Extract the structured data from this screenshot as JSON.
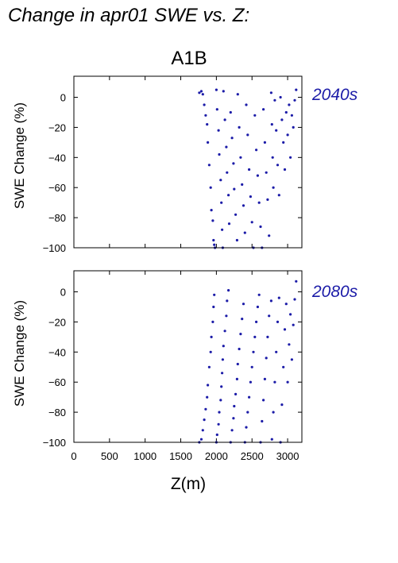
{
  "title": "Change in apr01 SWE vs. Z:",
  "scenario": "A1B",
  "colors": {
    "points": "#1c1ca8",
    "period_label": "#1c1ca8",
    "axes": "#000000"
  },
  "chart_data": [
    {
      "type": "scatter",
      "period_label": "2040s",
      "ylabel": "SWE Change (%)",
      "xlabel": "",
      "xlim": [
        0,
        3200
      ],
      "ylim": [
        -100,
        14
      ],
      "xticks": [
        0,
        500,
        1000,
        1500,
        2000,
        2500,
        3000
      ],
      "yticks": [
        0,
        -20,
        -40,
        -60,
        -80,
        -100
      ],
      "ytick_labels": [
        "0",
        "−20",
        "−40",
        "−60",
        "−80",
        "−100"
      ],
      "grid": false,
      "points": [
        [
          1760,
          3
        ],
        [
          1790,
          4
        ],
        [
          1810,
          2
        ],
        [
          1830,
          -5
        ],
        [
          1850,
          -12
        ],
        [
          1870,
          -18
        ],
        [
          1880,
          -30
        ],
        [
          1900,
          -45
        ],
        [
          1920,
          -60
        ],
        [
          1930,
          -75
        ],
        [
          1950,
          -82
        ],
        [
          1960,
          -95
        ],
        [
          1970,
          -98
        ],
        [
          1980,
          -100
        ],
        [
          2000,
          5
        ],
        [
          2010,
          -8
        ],
        [
          2030,
          -22
        ],
        [
          2040,
          -38
        ],
        [
          2060,
          -55
        ],
        [
          2070,
          -70
        ],
        [
          2080,
          -88
        ],
        [
          2090,
          -100
        ],
        [
          2100,
          4
        ],
        [
          2120,
          -15
        ],
        [
          2140,
          -33
        ],
        [
          2150,
          -50
        ],
        [
          2170,
          -65
        ],
        [
          2180,
          -84
        ],
        [
          2200,
          -10
        ],
        [
          2220,
          -27
        ],
        [
          2240,
          -44
        ],
        [
          2250,
          -61
        ],
        [
          2270,
          -78
        ],
        [
          2290,
          -95
        ],
        [
          2300,
          2
        ],
        [
          2320,
          -20
        ],
        [
          2340,
          -40
        ],
        [
          2360,
          -58
        ],
        [
          2380,
          -72
        ],
        [
          2400,
          -90
        ],
        [
          2420,
          -5
        ],
        [
          2440,
          -25
        ],
        [
          2460,
          -48
        ],
        [
          2480,
          -66
        ],
        [
          2500,
          -83
        ],
        [
          2520,
          -100
        ],
        [
          2540,
          -12
        ],
        [
          2560,
          -35
        ],
        [
          2580,
          -52
        ],
        [
          2600,
          -70
        ],
        [
          2620,
          -86
        ],
        [
          2640,
          -100
        ],
        [
          2660,
          -8
        ],
        [
          2680,
          -30
        ],
        [
          2700,
          -50
        ],
        [
          2720,
          -68
        ],
        [
          2740,
          -92
        ],
        [
          2770,
          3
        ],
        [
          2780,
          -18
        ],
        [
          2790,
          -40
        ],
        [
          2800,
          -60
        ],
        [
          2820,
          -2
        ],
        [
          2840,
          -22
        ],
        [
          2860,
          -45
        ],
        [
          2880,
          -65
        ],
        [
          2900,
          0
        ],
        [
          2920,
          -15
        ],
        [
          2940,
          -30
        ],
        [
          2960,
          -48
        ],
        [
          2980,
          -10
        ],
        [
          3000,
          -25
        ],
        [
          3020,
          -5
        ],
        [
          3040,
          -40
        ],
        [
          3060,
          -12
        ],
        [
          3080,
          -20
        ],
        [
          3100,
          -2
        ],
        [
          3120,
          5
        ]
      ]
    },
    {
      "type": "scatter",
      "period_label": "2080s",
      "ylabel": "SWE Change (%)",
      "xlabel": "Z(m)",
      "xlim": [
        0,
        3200
      ],
      "ylim": [
        -100,
        14
      ],
      "xticks": [
        0,
        500,
        1000,
        1500,
        2000,
        2500,
        3000
      ],
      "xtick_labels": [
        "0",
        "500",
        "1000",
        "1500",
        "2000",
        "2500",
        "3000"
      ],
      "yticks": [
        0,
        -20,
        -40,
        -60,
        -80,
        -100
      ],
      "ytick_labels": [
        "0",
        "−20",
        "−40",
        "−60",
        "−80",
        "−100"
      ],
      "grid": false,
      "points": [
        [
          1760,
          -100
        ],
        [
          1790,
          -98
        ],
        [
          1810,
          -92
        ],
        [
          1830,
          -85
        ],
        [
          1850,
          -78
        ],
        [
          1870,
          -70
        ],
        [
          1880,
          -62
        ],
        [
          1900,
          -50
        ],
        [
          1920,
          -40
        ],
        [
          1930,
          -30
        ],
        [
          1950,
          -20
        ],
        [
          1960,
          -10
        ],
        [
          1970,
          -2
        ],
        [
          2000,
          -100
        ],
        [
          2010,
          -95
        ],
        [
          2030,
          -88
        ],
        [
          2040,
          -80
        ],
        [
          2060,
          -72
        ],
        [
          2070,
          -63
        ],
        [
          2080,
          -54
        ],
        [
          2090,
          -45
        ],
        [
          2100,
          -36
        ],
        [
          2120,
          -26
        ],
        [
          2140,
          -16
        ],
        [
          2150,
          -6
        ],
        [
          2170,
          1
        ],
        [
          2200,
          -100
        ],
        [
          2220,
          -92
        ],
        [
          2240,
          -84
        ],
        [
          2250,
          -76
        ],
        [
          2270,
          -68
        ],
        [
          2290,
          -58
        ],
        [
          2300,
          -48
        ],
        [
          2320,
          -38
        ],
        [
          2340,
          -28
        ],
        [
          2360,
          -18
        ],
        [
          2380,
          -8
        ],
        [
          2400,
          -100
        ],
        [
          2420,
          -90
        ],
        [
          2440,
          -80
        ],
        [
          2460,
          -70
        ],
        [
          2480,
          -60
        ],
        [
          2500,
          -50
        ],
        [
          2520,
          -40
        ],
        [
          2540,
          -30
        ],
        [
          2560,
          -20
        ],
        [
          2580,
          -10
        ],
        [
          2600,
          -2
        ],
        [
          2620,
          -100
        ],
        [
          2640,
          -86
        ],
        [
          2660,
          -72
        ],
        [
          2680,
          -58
        ],
        [
          2700,
          -44
        ],
        [
          2720,
          -30
        ],
        [
          2740,
          -16
        ],
        [
          2770,
          -6
        ],
        [
          2780,
          -98
        ],
        [
          2800,
          -80
        ],
        [
          2820,
          -60
        ],
        [
          2840,
          -40
        ],
        [
          2860,
          -20
        ],
        [
          2880,
          -4
        ],
        [
          2900,
          -100
        ],
        [
          2920,
          -75
        ],
        [
          2940,
          -50
        ],
        [
          2960,
          -25
        ],
        [
          2980,
          -8
        ],
        [
          3000,
          -60
        ],
        [
          3020,
          -35
        ],
        [
          3040,
          -15
        ],
        [
          3060,
          -45
        ],
        [
          3080,
          -22
        ],
        [
          3100,
          -5
        ],
        [
          3120,
          7
        ]
      ]
    }
  ]
}
